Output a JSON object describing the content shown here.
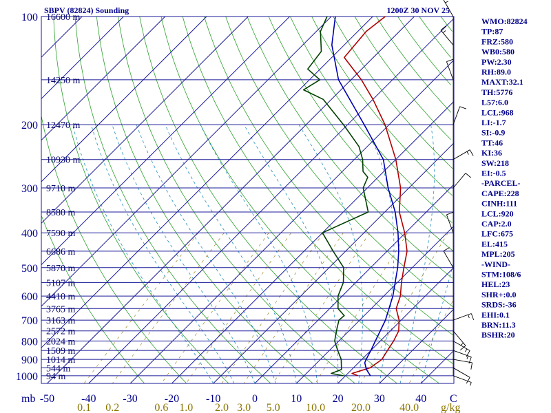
{
  "chart_data": {
    "type": "line",
    "title": "SBPV (82824) Sounding",
    "datetime": "1200Z 30 NOV 25",
    "x_unit": "C",
    "pressure_unit": "mb",
    "mixing_ratio_unit": "g/kg",
    "temp_ticks": [
      "-50",
      "-40",
      "-30",
      "-20",
      "-10",
      "0",
      "10",
      "20",
      "30",
      "40"
    ],
    "pressure_ticks": [
      {
        "p": 100,
        "label": "100"
      },
      {
        "p": 200,
        "label": "200"
      },
      {
        "p": 300,
        "label": "300"
      },
      {
        "p": 400,
        "label": "400"
      },
      {
        "p": 500,
        "label": "500"
      },
      {
        "p": 600,
        "label": "600"
      },
      {
        "p": 700,
        "label": "700"
      },
      {
        "p": 800,
        "label": "800"
      },
      {
        "p": 900,
        "label": "900"
      },
      {
        "p": 1000,
        "label": "1000"
      }
    ],
    "height_levels": [
      {
        "p": 100,
        "label": "16600 m"
      },
      {
        "p": 150,
        "label": "14250 m"
      },
      {
        "p": 200,
        "label": "12470 m"
      },
      {
        "p": 250,
        "label": "10930 m"
      },
      {
        "p": 300,
        "label": "9710 m"
      },
      {
        "p": 350,
        "label": "8580 m"
      },
      {
        "p": 400,
        "label": "7590 m"
      },
      {
        "p": 450,
        "label": "6686 m"
      },
      {
        "p": 500,
        "label": "5870 m"
      },
      {
        "p": 550,
        "label": "5107 m"
      },
      {
        "p": 600,
        "label": "4410 m"
      },
      {
        "p": 650,
        "label": "3765 m"
      },
      {
        "p": 700,
        "label": "3163 m"
      },
      {
        "p": 750,
        "label": "2572 m"
      },
      {
        "p": 800,
        "label": "2024 m"
      },
      {
        "p": 850,
        "label": "1509 m"
      },
      {
        "p": 900,
        "label": "1014 m"
      },
      {
        "p": 950,
        "label": "544 m"
      },
      {
        "p": 1000,
        "label": "94 m"
      }
    ],
    "mixing_ratio_labels": [
      "0.1",
      "0.2",
      "0.6",
      "1.0",
      "2.0",
      "3.0",
      "5.0",
      "10.0",
      "20.0",
      "40.0"
    ],
    "series": [
      {
        "name": "Temperature",
        "color": "#b00000",
        "points": [
          [
            1000,
            23.0
          ],
          [
            985,
            21.0
          ],
          [
            950,
            24.0
          ],
          [
            900,
            24.8
          ],
          [
            850,
            24.0
          ],
          [
            800,
            23.2
          ],
          [
            750,
            22.0
          ],
          [
            700,
            19.5
          ],
          [
            650,
            16.0
          ],
          [
            600,
            14.0
          ],
          [
            550,
            11.0
          ],
          [
            500,
            8.0
          ],
          [
            450,
            4.8
          ],
          [
            400,
            -0.2
          ],
          [
            350,
            -6.5
          ],
          [
            300,
            -12.0
          ],
          [
            250,
            -20.0
          ],
          [
            200,
            -31.0
          ],
          [
            170,
            -40.0
          ],
          [
            150,
            -47.5
          ],
          [
            130,
            -57.0
          ],
          [
            110,
            -58.0
          ],
          [
            100,
            -57.0
          ]
        ]
      },
      {
        "name": "Dewpoint",
        "color": "#004000",
        "points": [
          [
            1000,
            19.5
          ],
          [
            985,
            16.0
          ],
          [
            960,
            17.5
          ],
          [
            900,
            15.0
          ],
          [
            850,
            12.0
          ],
          [
            800,
            9.0
          ],
          [
            750,
            7.0
          ],
          [
            700,
            5.0
          ],
          [
            680,
            5.2
          ],
          [
            650,
            2.0
          ],
          [
            600,
            -1.0
          ],
          [
            550,
            -3.0
          ],
          [
            500,
            -6.5
          ],
          [
            450,
            -13.0
          ],
          [
            400,
            -20.0
          ],
          [
            350,
            -14.0
          ],
          [
            300,
            -21.0
          ],
          [
            280,
            -22.5
          ],
          [
            270,
            -25.0
          ],
          [
            250,
            -28.0
          ],
          [
            230,
            -32.0
          ],
          [
            200,
            -41.0
          ],
          [
            170,
            -52.0
          ],
          [
            160,
            -59.0
          ],
          [
            150,
            -57.5
          ],
          [
            140,
            -63.0
          ],
          [
            125,
            -64.0
          ],
          [
            110,
            -69.0
          ],
          [
            100,
            -71.0
          ]
        ]
      },
      {
        "name": "Parcel",
        "color": "#0000b0",
        "points": [
          [
            1000,
            26.0
          ],
          [
            960,
            23.5
          ],
          [
            920,
            21.5
          ],
          [
            900,
            21.0
          ],
          [
            850,
            20.0
          ],
          [
            800,
            18.8
          ],
          [
            700,
            16.2
          ],
          [
            600,
            12.2
          ],
          [
            500,
            6.5
          ],
          [
            450,
            2.8
          ],
          [
            400,
            -1.8
          ],
          [
            350,
            -7.5
          ],
          [
            300,
            -15.0
          ],
          [
            250,
            -23.0
          ],
          [
            200,
            -36.0
          ],
          [
            150,
            -53.0
          ],
          [
            120,
            -63.0
          ],
          [
            100,
            -69.0
          ]
        ]
      }
    ],
    "wind_barbs": [
      {
        "p": 1000,
        "dir": 110,
        "spd": 5
      },
      {
        "p": 950,
        "dir": 120,
        "spd": 10
      },
      {
        "p": 900,
        "dir": 100,
        "spd": 10
      },
      {
        "p": 850,
        "dir": 110,
        "spd": 15
      },
      {
        "p": 800,
        "dir": 120,
        "spd": 15
      },
      {
        "p": 750,
        "dir": 140,
        "spd": 15
      },
      {
        "p": 700,
        "dir": 70,
        "spd": 15
      },
      {
        "p": 500,
        "dir": 330,
        "spd": 10
      },
      {
        "p": 400,
        "dir": 340,
        "spd": 10
      },
      {
        "p": 300,
        "dir": 40,
        "spd": 10
      },
      {
        "p": 250,
        "dir": 60,
        "spd": 15
      },
      {
        "p": 200,
        "dir": 20,
        "spd": 10
      },
      {
        "p": 150,
        "dir": 340,
        "spd": 10
      },
      {
        "p": 120,
        "dir": 320,
        "spd": 15
      },
      {
        "p": 100,
        "dir": 330,
        "spd": 15
      }
    ],
    "indices": [
      "WMO:82824",
      "TP:87",
      "FRZ:580",
      "WB0:580",
      "PW:2.30",
      "RH:89.0",
      "MAXT:32.1",
      "TH:5776",
      "L57:6.0",
      "LCL:968",
      "LI:-1.7",
      "SI:-0.9",
      "TT:46",
      "KI:36",
      "SW:218",
      "EI:-0.5",
      "-PARCEL-",
      "CAPE:228",
      "CINH:111",
      "LCL:920",
      "CAP:2.0",
      "LFC:675",
      "EL:415",
      "MPL:205",
      "-WIND-",
      "STM:108/6",
      "HEL:23",
      "SHR+:0.0",
      "SRDS:-36",
      "EHI:0.1",
      "BRN:11.3",
      "BSHR:20"
    ]
  }
}
